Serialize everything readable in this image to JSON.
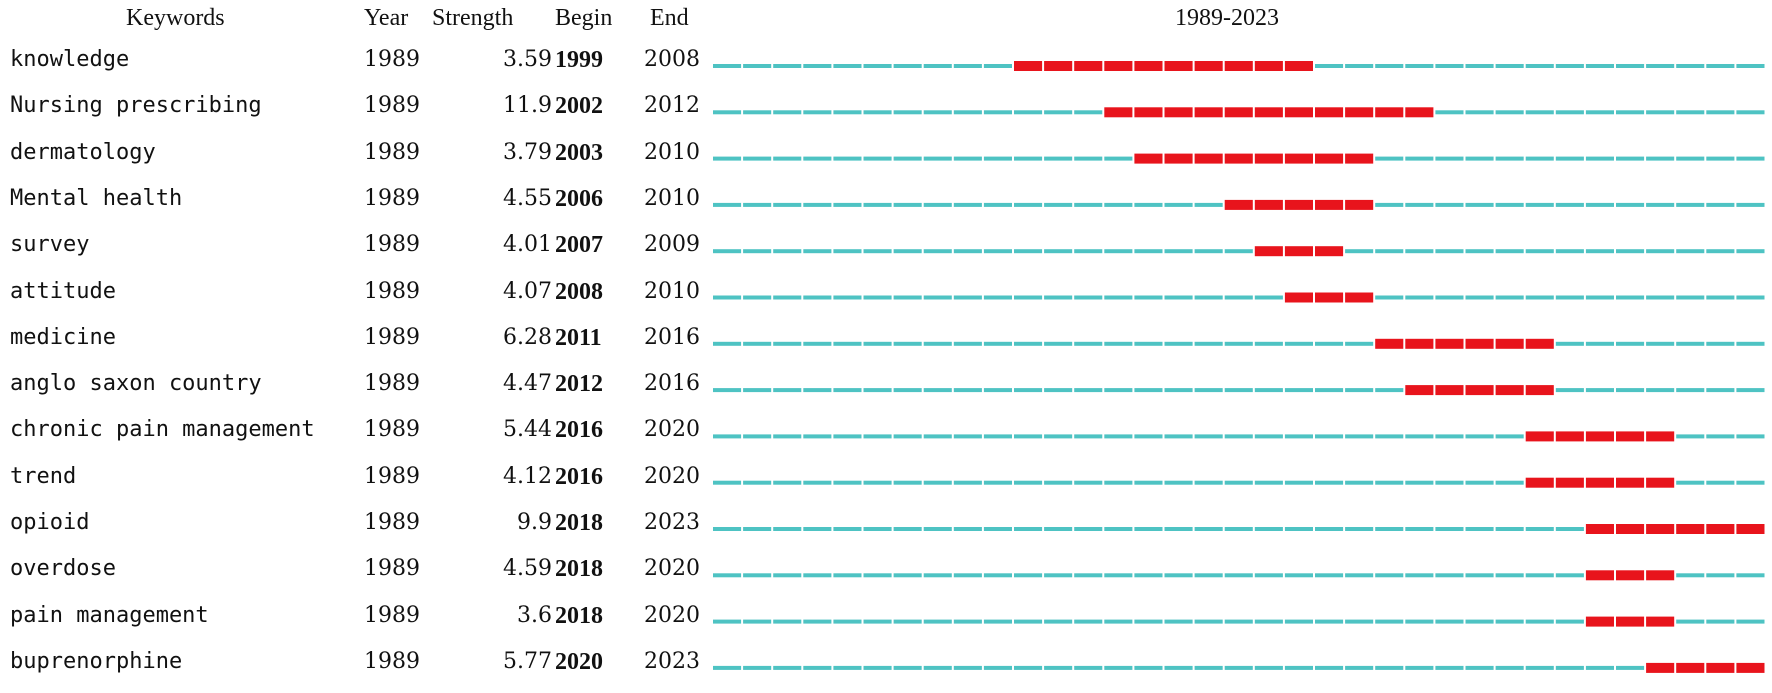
{
  "chart_data": {
    "type": "table",
    "title": "1989-2023",
    "headers": {
      "keywords": "Keywords",
      "year": "Year",
      "strength": "Strength",
      "begin": "Begin",
      "end": "End"
    },
    "year_range": [
      1989,
      2023
    ],
    "colors": {
      "baseline": "#4ec3c3",
      "burst": "#e8141c"
    },
    "rows": [
      {
        "keyword": "knowledge",
        "year": "1989",
        "strength": "3.59",
        "begin": "1999",
        "end": "2008"
      },
      {
        "keyword": "Nursing prescribing",
        "year": "1989",
        "strength": "11.9",
        "begin": "2002",
        "end": "2012"
      },
      {
        "keyword": "dermatology",
        "year": "1989",
        "strength": "3.79",
        "begin": "2003",
        "end": "2010"
      },
      {
        "keyword": "Mental health",
        "year": "1989",
        "strength": "4.55",
        "begin": "2006",
        "end": "2010"
      },
      {
        "keyword": "survey",
        "year": "1989",
        "strength": "4.01",
        "begin": "2007",
        "end": "2009"
      },
      {
        "keyword": "attitude",
        "year": "1989",
        "strength": "4.07",
        "begin": "2008",
        "end": "2010"
      },
      {
        "keyword": "medicine",
        "year": "1989",
        "strength": "6.28",
        "begin": "2011",
        "end": "2016"
      },
      {
        "keyword": "anglo saxon country",
        "year": "1989",
        "strength": "4.47",
        "begin": "2012",
        "end": "2016"
      },
      {
        "keyword": "chronic pain management",
        "year": "1989",
        "strength": "5.44",
        "begin": "2016",
        "end": "2020"
      },
      {
        "keyword": "trend",
        "year": "1989",
        "strength": "4.12",
        "begin": "2016",
        "end": "2020"
      },
      {
        "keyword": "opioid",
        "year": "1989",
        "strength": "9.9",
        "begin": "2018",
        "end": "2023"
      },
      {
        "keyword": "overdose",
        "year": "1989",
        "strength": "4.59",
        "begin": "2018",
        "end": "2020"
      },
      {
        "keyword": "pain management",
        "year": "1989",
        "strength": "3.6",
        "begin": "2018",
        "end": "2020"
      },
      {
        "keyword": "buprenorphine",
        "year": "1989",
        "strength": "5.77",
        "begin": "2020",
        "end": "2023"
      }
    ]
  }
}
